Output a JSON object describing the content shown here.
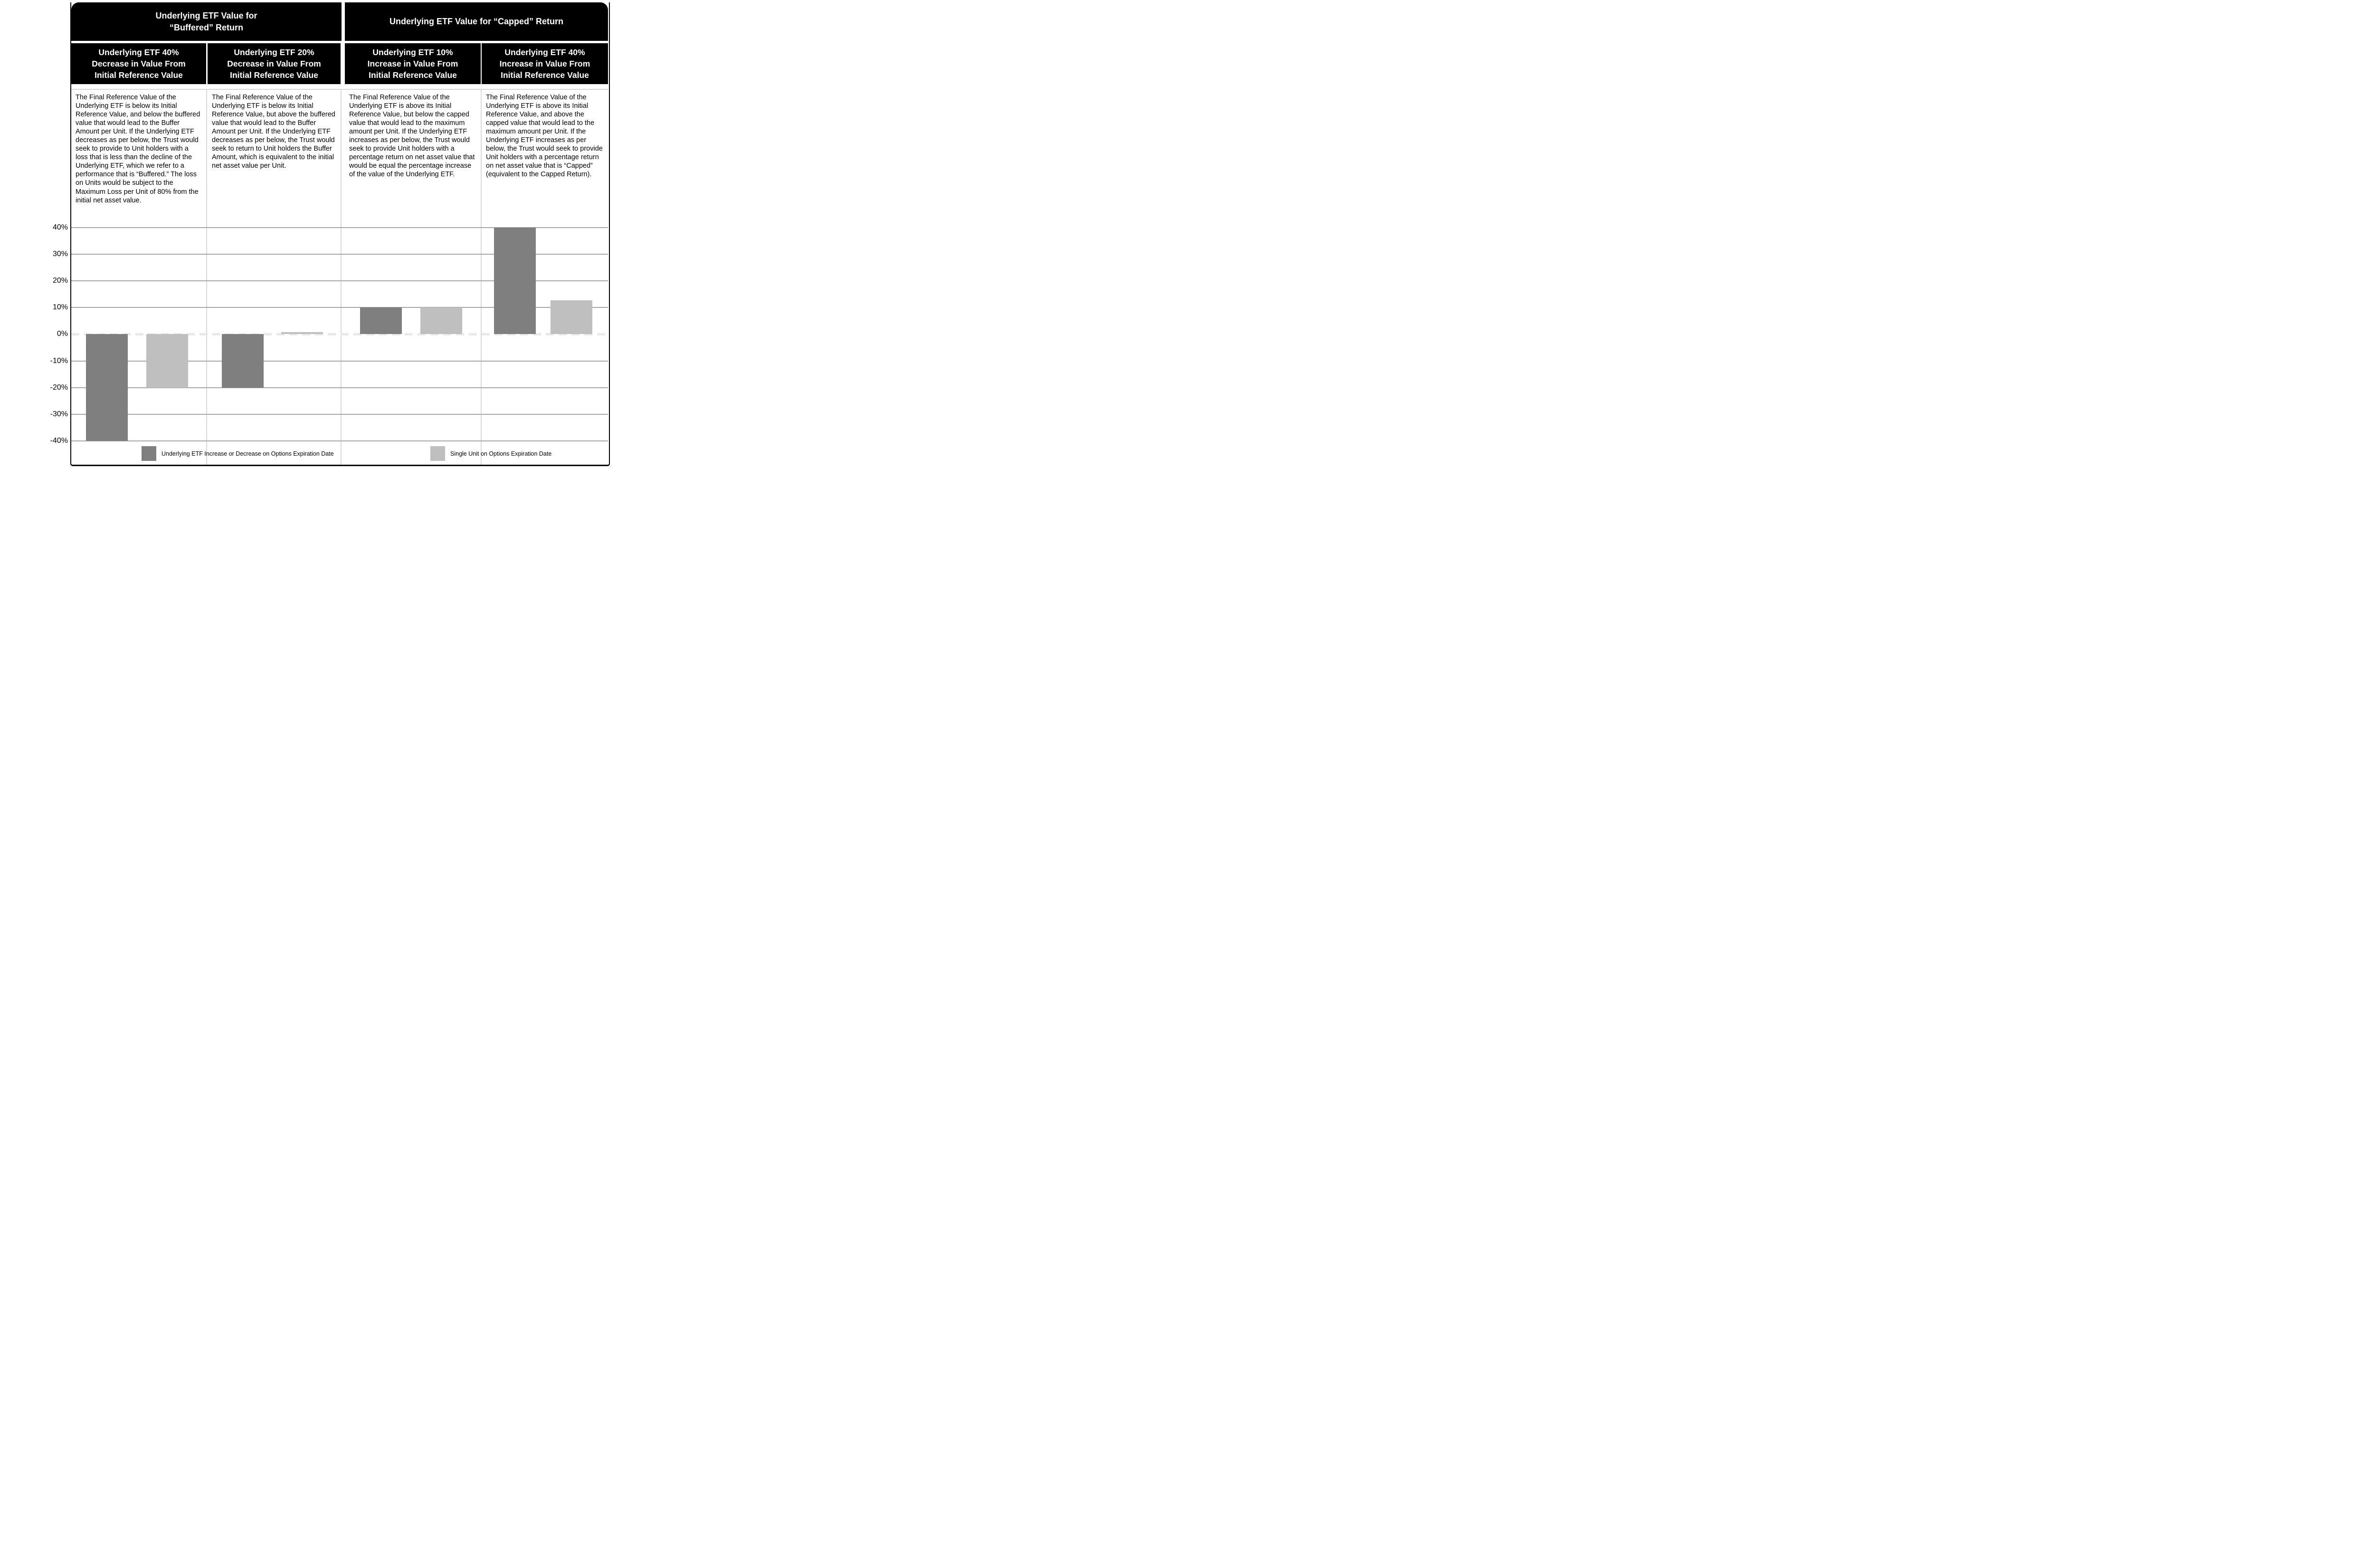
{
  "header": {
    "group_headers": [
      {
        "id": "buffered",
        "label": "Underlying ETF Value for\n“Buffered” Return"
      },
      {
        "id": "capped",
        "label": "Underlying ETF Value for “Capped” Return"
      }
    ],
    "column_headers": [
      {
        "label": "Underlying ETF 40%\nDecrease in Value From\nInitial Reference Value"
      },
      {
        "label": "Underlying ETF 20%\nDecrease in Value From\nInitial Reference Value"
      },
      {
        "label": "Underlying ETF 10%\nIncrease in Value From\nInitial Reference Value"
      },
      {
        "label": "Underlying ETF 40%\nIncrease in Value From\nInitial Reference Value"
      }
    ]
  },
  "descriptions": [
    {
      "text": "The Final Reference Value of the Underlying ETF is below its Initial Reference Value, and below the buffered value that would lead to the Buffer Amount per Unit. If the Underlying ETF decreases as per below, the Trust would seek to provide to Unit holders with a loss that is less than the decline of the Underlying ETF, which we refer to a performance that is “Buffered.” The loss on Units would be subject to the Maximum Loss per Unit of 80% from the initial net asset value."
    },
    {
      "text": "The Final Reference Value of the Underlying ETF is below its Initial Reference Value, but above the buffered value that would lead to the Buffer Amount per Unit. If the Underlying ETF decreases as per below, the Trust would seek to return to Unit holders the Buffer Amount, which is equivalent to the initial net asset value per Unit."
    },
    {
      "text": "The Final Reference Value of the Underlying ETF is above its Initial Reference Value, but below the capped value that would lead to the maximum amount per Unit. If the Underlying ETF increases as per below, the Trust would seek to provide Unit holders with a percentage return on net asset value that would be equal the percentage increase of the value of the Underlying ETF."
    },
    {
      "text": "The Final Reference Value of the Underlying ETF is above its Initial Reference Value, and above the capped value that would lead to the maximum amount per Unit. If the Underlying ETF increases as per below, the Trust would seek to provide Unit holders with a percentage return on net asset value that is “Capped” (equivalent to the Capped Return)."
    }
  ],
  "chart_data": {
    "type": "bar",
    "title": "",
    "xlabel": "",
    "ylabel": "",
    "categories": [
      "Underlying ETF 40% Decrease in Value From Initial Reference Value",
      "Underlying ETF 20% Decrease in Value From Initial Reference Value",
      "Underlying ETF 10% Increase in Value From Initial Reference Value",
      "Underlying ETF 40% Increase in Value From Initial Reference Value"
    ],
    "series": [
      {
        "name": "Underlying ETF Increase or Decrease on Options Expiration Date",
        "color": "#7f7f7f",
        "values": [
          -40,
          -20,
          10,
          40
        ]
      },
      {
        "name": "Single Unit on Options Expiration Date",
        "color": "#bfbfbf",
        "values": [
          -20,
          0.8,
          10,
          12.8
        ]
      }
    ],
    "ylim": [
      -40,
      40
    ],
    "yticks": [
      "40%",
      "30%",
      "20%",
      "10%",
      "0%",
      "-10%",
      "-20%",
      "-30%",
      "-40%"
    ],
    "grid": true,
    "zero_line_style": "dashed",
    "legend_position": "bottom-inside"
  },
  "colors": {
    "header_bg": "#000000",
    "header_text": "#ffffff",
    "dark_bar": "#7f7f7f",
    "light_bar": "#bfbfbf",
    "gridline": "#a6a6a6",
    "zero_dash": "#e9e9e9",
    "cell_divider": "#d9d9d9",
    "border": "#000000",
    "background": "#ffffff"
  }
}
